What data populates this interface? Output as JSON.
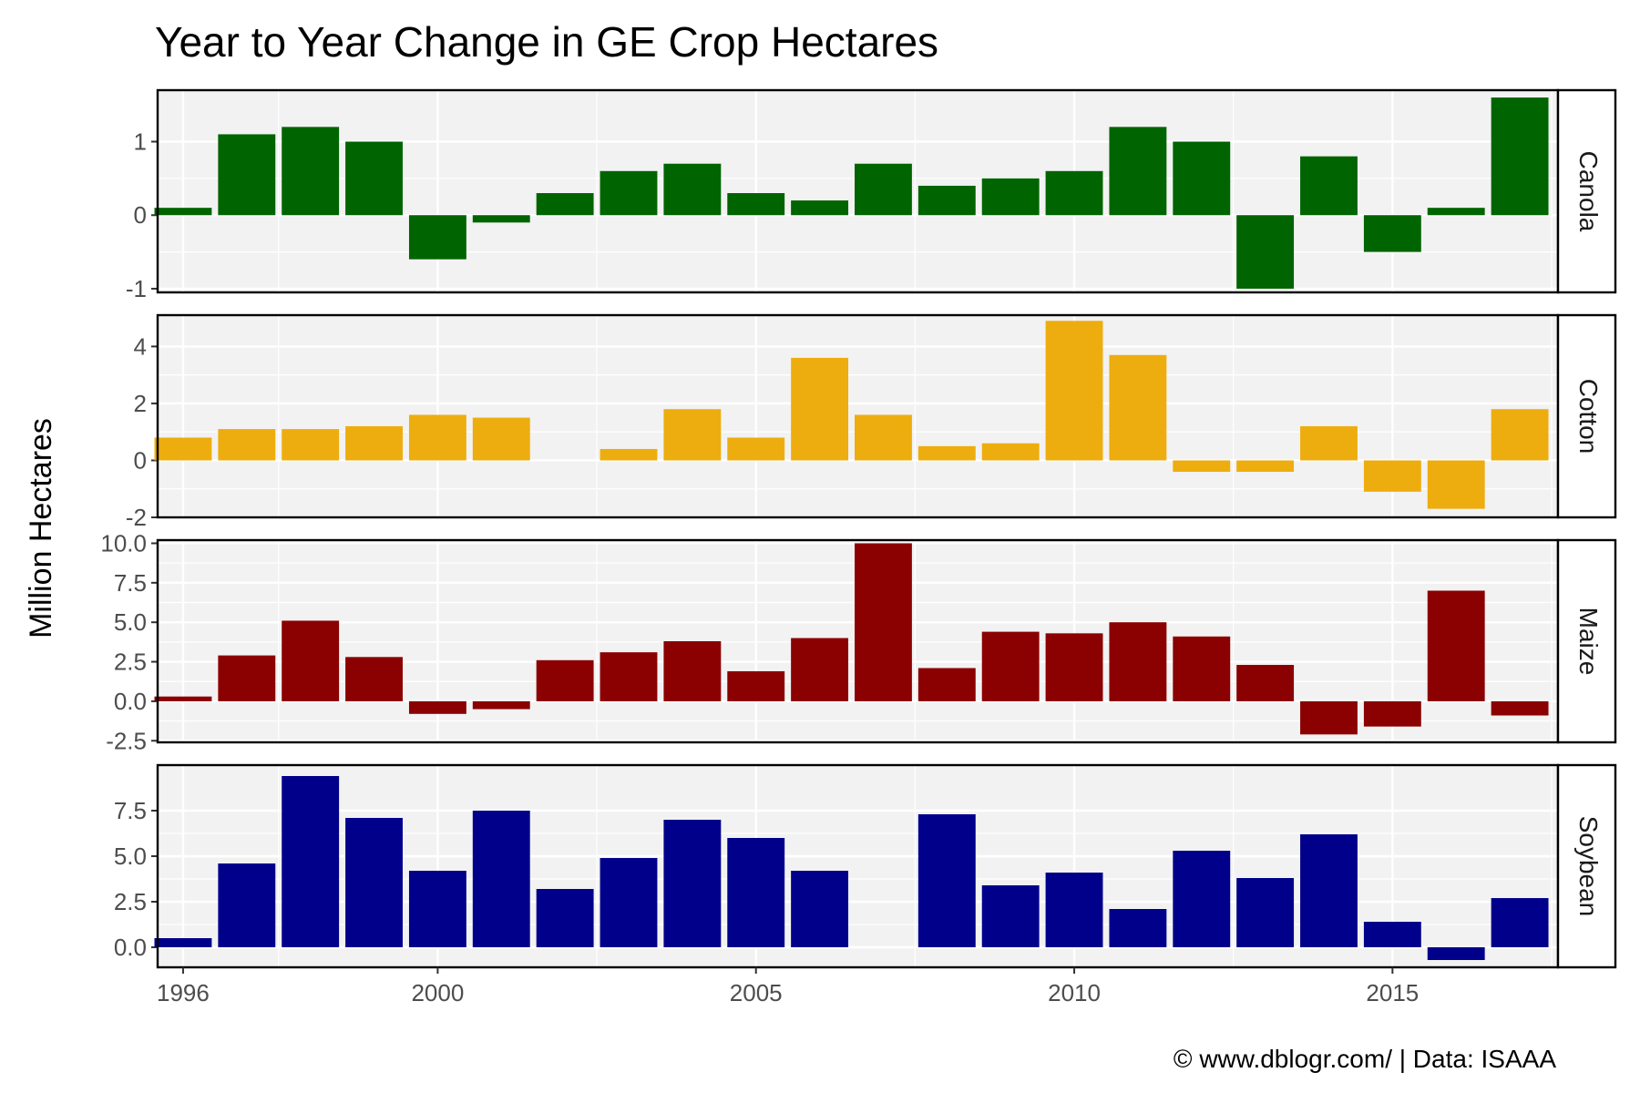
{
  "chart_data": {
    "type": "bar",
    "title": "Year to Year Change in GE Crop Hectares",
    "ylabel": "Million Hectares",
    "xlabel": "",
    "caption": "© www.dblogr.com/  |  Data: ISAAA",
    "x": [
      1996,
      1997,
      1998,
      1999,
      2000,
      2001,
      2002,
      2003,
      2004,
      2005,
      2006,
      2007,
      2008,
      2009,
      2010,
      2011,
      2012,
      2013,
      2014,
      2015,
      2016,
      2017
    ],
    "x_ticks": [
      1996,
      2000,
      2005,
      2010,
      2015
    ],
    "x_tick_labels": [
      "1996",
      "2000",
      "2005",
      "2010",
      "2015"
    ],
    "xlim": [
      1995.6,
      2017.6
    ],
    "grid": true,
    "legend": "none",
    "facets": [
      {
        "name": "Canola",
        "color": "#006400",
        "ylim": [
          -1.05,
          1.7
        ],
        "yticks": [
          -1,
          0,
          1
        ],
        "ytick_labels": [
          "-1",
          "0",
          "1"
        ],
        "values": [
          0.1,
          1.1,
          1.2,
          1.0,
          -0.6,
          -0.1,
          0.3,
          0.6,
          0.7,
          0.3,
          0.2,
          0.7,
          0.4,
          0.5,
          0.6,
          1.2,
          1.0,
          -1.0,
          0.8,
          -0.5,
          0.1,
          1.6
        ]
      },
      {
        "name": "Cotton",
        "color": "#EEAD0E",
        "ylim": [
          -2.0,
          5.1
        ],
        "yticks": [
          -2,
          0,
          2,
          4
        ],
        "ytick_labels": [
          "-2",
          "0",
          "2",
          "4"
        ],
        "values": [
          0.8,
          1.1,
          1.1,
          1.2,
          1.6,
          1.5,
          null,
          0.4,
          1.8,
          0.8,
          3.6,
          1.6,
          0.5,
          0.6,
          4.9,
          3.7,
          -0.4,
          -0.4,
          1.2,
          -1.1,
          -1.7,
          1.8
        ]
      },
      {
        "name": "Maize",
        "color": "#8B0000",
        "ylim": [
          -2.6,
          10.2
        ],
        "yticks": [
          -2.5,
          0,
          2.5,
          5,
          7.5,
          10
        ],
        "ytick_labels": [
          "-2.5",
          "0.0",
          "2.5",
          "5.0",
          "7.5",
          "10.0"
        ],
        "values": [
          0.3,
          2.9,
          5.1,
          2.8,
          -0.8,
          -0.5,
          2.6,
          3.1,
          3.8,
          1.9,
          4.0,
          10.0,
          2.1,
          4.4,
          4.3,
          5.0,
          4.1,
          2.3,
          -2.1,
          -1.6,
          7.0,
          -0.9
        ]
      },
      {
        "name": "Soybean",
        "color": "#00008B",
        "ylim": [
          -1.1,
          10.0
        ],
        "yticks": [
          0,
          2.5,
          5,
          7.5
        ],
        "ytick_labels": [
          "0.0",
          "2.5",
          "5.0",
          "7.5"
        ],
        "values": [
          0.5,
          4.6,
          9.4,
          7.1,
          4.2,
          7.5,
          3.2,
          4.9,
          7.0,
          6.0,
          4.2,
          null,
          7.3,
          3.4,
          4.1,
          2.1,
          5.3,
          3.8,
          6.2,
          1.4,
          -0.7,
          2.7
        ]
      }
    ]
  }
}
